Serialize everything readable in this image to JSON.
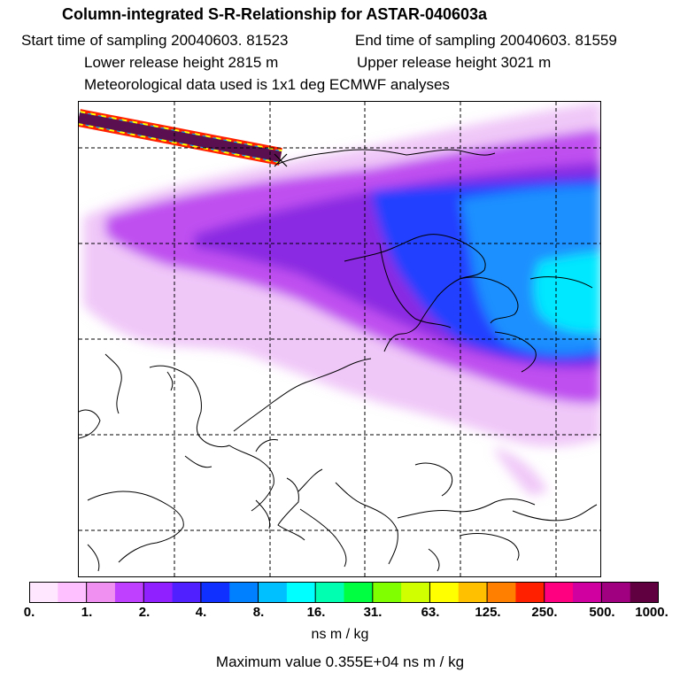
{
  "header": {
    "title": "Column-integrated S-R-Relationship for ASTAR-040603a",
    "start_time": "Start time of sampling 20040603. 81523",
    "end_time": "End time of sampling 20040603. 81559",
    "lower_release": "Lower release height 2815 m",
    "upper_release": "Upper release height 3021 m",
    "met_data": "Meteorological data used is 1x1 deg ECMWF analyses"
  },
  "legend": {
    "ticks": [
      "0.",
      "1.",
      "2.",
      "4.",
      "8.",
      "16.",
      "31.",
      "63.",
      "125.",
      "250.",
      "500.",
      "1000."
    ],
    "units": "ns m / kg",
    "max_value": "Maximum value  0.355E+04 ns m / kg",
    "colors": [
      "#ffe8ff",
      "#ffc0ff",
      "#f090f0",
      "#c040ff",
      "#9020ff",
      "#5020ff",
      "#1030ff",
      "#0080ff",
      "#00c0ff",
      "#00ffff",
      "#00ffb0",
      "#00ff40",
      "#80ff00",
      "#d0ff00",
      "#ffff00",
      "#ffc000",
      "#ff8000",
      "#ff2000",
      "#ff0080",
      "#d000a0",
      "#a00080",
      "#600040"
    ]
  },
  "map": {
    "colors": {
      "light": "#f0c8f8",
      "violet": "#c050f0",
      "purple": "#8a2be2",
      "blue": "#2040ff",
      "azure": "#1e90ff",
      "cyan": "#00e8ff",
      "coast": "#000000",
      "grid": "#000000"
    }
  }
}
